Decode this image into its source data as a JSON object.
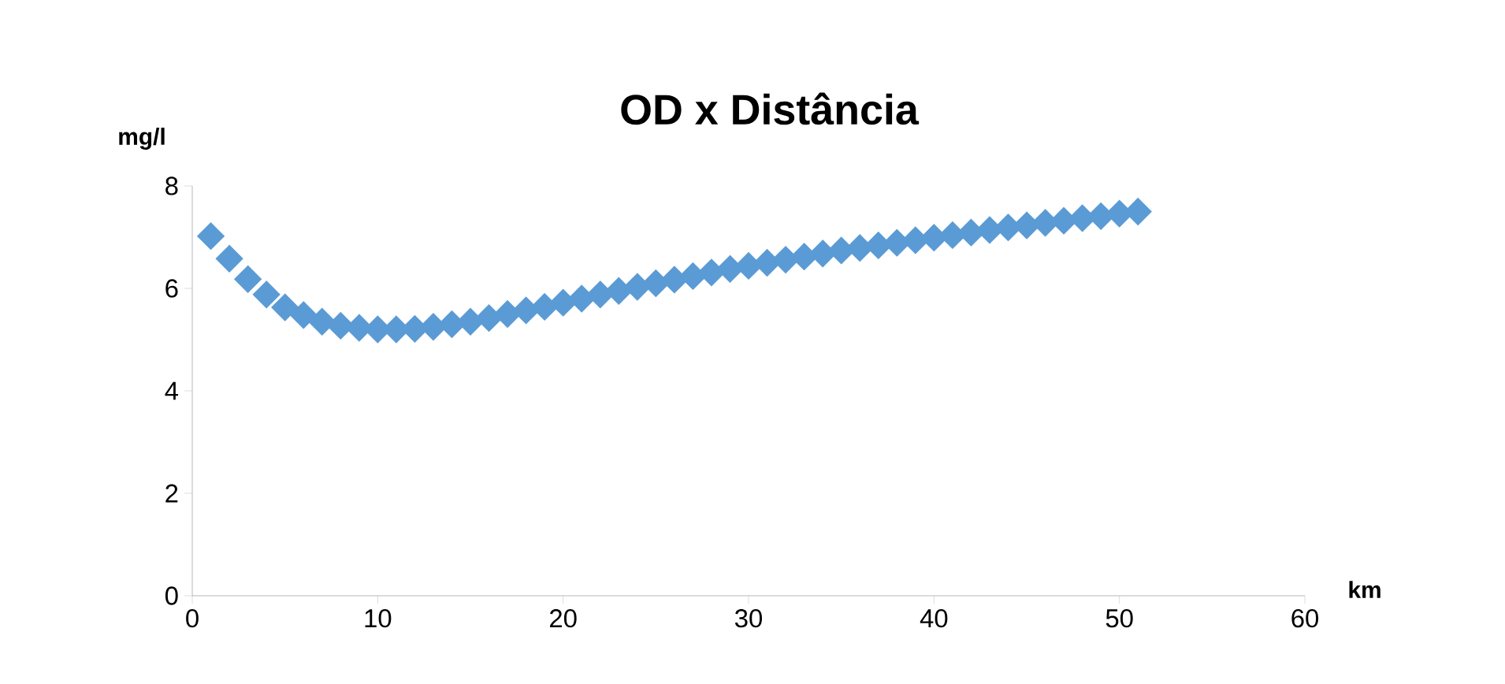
{
  "chart_data": {
    "type": "scatter",
    "title": "OD x Distância",
    "xlabel": "km",
    "ylabel": "mg/l",
    "x": [
      1,
      2,
      3,
      4,
      5,
      6,
      7,
      8,
      9,
      10,
      11,
      12,
      13,
      14,
      15,
      16,
      17,
      18,
      19,
      20,
      21,
      22,
      23,
      24,
      25,
      26,
      27,
      28,
      29,
      30,
      31,
      32,
      33,
      34,
      35,
      36,
      37,
      38,
      39,
      40,
      41,
      42,
      43,
      44,
      45,
      46,
      47,
      48,
      49,
      50,
      51
    ],
    "values": [
      7.02,
      6.58,
      6.18,
      5.88,
      5.63,
      5.48,
      5.35,
      5.27,
      5.23,
      5.2,
      5.2,
      5.21,
      5.25,
      5.3,
      5.35,
      5.42,
      5.5,
      5.57,
      5.64,
      5.72,
      5.8,
      5.88,
      5.95,
      6.03,
      6.1,
      6.17,
      6.24,
      6.31,
      6.38,
      6.44,
      6.5,
      6.56,
      6.62,
      6.68,
      6.74,
      6.79,
      6.84,
      6.89,
      6.94,
      6.99,
      7.04,
      7.09,
      7.14,
      7.19,
      7.23,
      7.28,
      7.32,
      7.37,
      7.41,
      7.46,
      7.5
    ],
    "color": "#5b9bd5",
    "marker": "diamond",
    "xlim": [
      0,
      60
    ],
    "ylim": [
      0,
      8
    ],
    "xticks": [
      0,
      10,
      20,
      30,
      40,
      50,
      60
    ],
    "yticks": [
      0,
      2,
      4,
      6,
      8
    ]
  }
}
